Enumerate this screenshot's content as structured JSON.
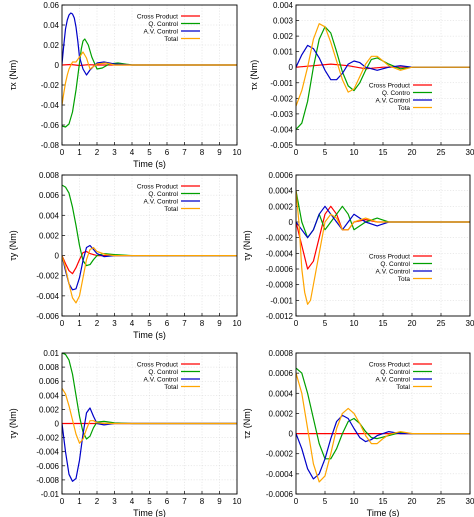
{
  "chart_data": [
    {
      "type": "line",
      "xlabel": "Time (s)",
      "ylabel": "τx (Nm)",
      "xlim": [
        0,
        10
      ],
      "ylim": [
        -0.08,
        0.06
      ],
      "xticks": [
        "0",
        "1",
        "2",
        "3",
        "4",
        "5",
        "6",
        "7",
        "8",
        "9",
        "10"
      ],
      "yticks": [
        "-0.08",
        "-0.06",
        "-0.04",
        "-0.02",
        "0",
        "0.02",
        "0.04",
        "0.06"
      ],
      "legend_position": "top-right",
      "series": [
        {
          "name": "Cross Product",
          "color": "#ff0000",
          "x": [
            0,
            0.5,
            1,
            1.5,
            2,
            3,
            10
          ],
          "y": [
            0,
            0.0005,
            -0.0005,
            0.0003,
            0,
            0,
            0
          ]
        },
        {
          "name": "Q. Control",
          "color": "#00a000",
          "x": [
            0,
            0.2,
            0.4,
            0.6,
            0.8,
            1.0,
            1.1,
            1.2,
            1.3,
            1.5,
            1.7,
            2.0,
            2.3,
            2.7,
            3.2,
            4,
            10
          ],
          "y": [
            -0.061,
            -0.062,
            -0.059,
            -0.047,
            -0.025,
            0.002,
            0.016,
            0.024,
            0.026,
            0.02,
            0.008,
            -0.004,
            -0.003,
            0.001,
            0.002,
            0,
            0
          ]
        },
        {
          "name": "A.V. Control",
          "color": "#0000c8",
          "x": [
            0,
            0.1,
            0.2,
            0.3,
            0.4,
            0.5,
            0.6,
            0.7,
            0.8,
            0.9,
            1.0,
            1.2,
            1.4,
            1.6,
            2.0,
            2.4,
            3,
            4,
            10
          ],
          "y": [
            0.001,
            0.02,
            0.036,
            0.045,
            0.05,
            0.052,
            0.051,
            0.047,
            0.038,
            0.024,
            0.008,
            -0.004,
            -0.01,
            -0.005,
            0.002,
            0.003,
            0.001,
            0,
            0
          ]
        },
        {
          "name": "Total",
          "color": "#ffa500",
          "x": [
            0,
            0.1,
            0.2,
            0.3,
            0.4,
            0.6,
            0.8,
            1.0,
            1.2,
            1.4,
            1.6,
            2.0,
            2.5,
            3,
            10
          ],
          "y": [
            -0.04,
            -0.028,
            -0.018,
            -0.01,
            -0.004,
            0.003,
            0.003,
            0.008,
            0.013,
            0.007,
            -0.004,
            0.001,
            0.002,
            0,
            0
          ]
        }
      ]
    },
    {
      "type": "line",
      "xlabel": "",
      "ylabel": "τx (Nm)",
      "xlim": [
        0,
        30
      ],
      "ylim": [
        -0.005,
        0.004
      ],
      "xticks": [
        "0",
        "5",
        "10",
        "15",
        "20",
        "25",
        "30"
      ],
      "yticks": [
        "-0.005",
        "-0.004",
        "-0.003",
        "-0.002",
        "-0.001",
        "0",
        "0.001",
        "0.002",
        "0.003",
        "0.004"
      ],
      "legend_position": "right",
      "series": [
        {
          "name": "Cross Product",
          "color": "#ff0000",
          "x": [
            0,
            3,
            6,
            9,
            12,
            15,
            18,
            30
          ],
          "y": [
            0,
            0.0001,
            0.0002,
            0.0001,
            -0.0001,
            0,
            0,
            0
          ]
        },
        {
          "name": "Q. Contro",
          "color": "#00a000",
          "x": [
            0,
            1,
            2,
            3,
            4,
            5,
            6,
            7,
            8,
            9,
            10,
            11,
            12,
            13,
            14,
            16,
            18,
            20,
            22,
            30
          ],
          "y": [
            -0.004,
            -0.0036,
            -0.0022,
            0,
            0.0018,
            0.0026,
            0.0022,
            0.001,
            -0.0003,
            -0.0012,
            -0.0015,
            -0.001,
            -0.0002,
            0.0005,
            0.0006,
            0.0002,
            -0.0001,
            0,
            0,
            0
          ]
        },
        {
          "name": "A.V. Control",
          "color": "#0000c8",
          "x": [
            0,
            1,
            2,
            3,
            4,
            5,
            6,
            7,
            8,
            9,
            10,
            11,
            12,
            14,
            16,
            18,
            20,
            30
          ],
          "y": [
            0,
            0.0008,
            0.0014,
            0.0012,
            0.0006,
            -0.0002,
            -0.0008,
            -0.0008,
            -0.0004,
            0.0002,
            0.0004,
            0.0003,
            0,
            -0.0002,
            0,
            0.0001,
            0,
            0
          ]
        },
        {
          "name": "Tota",
          "color": "#ffa500",
          "x": [
            0,
            1,
            2,
            3,
            4,
            5,
            6,
            7,
            8,
            9,
            10,
            11,
            12,
            13,
            14,
            15,
            16,
            18,
            20,
            22,
            30
          ],
          "y": [
            -0.0025,
            -0.0015,
            0,
            0.0018,
            0.0028,
            0.0026,
            0.0016,
            0.0004,
            -0.0008,
            -0.0016,
            -0.0014,
            -0.0006,
            0.0002,
            0.0007,
            0.0007,
            0.0004,
            0.0001,
            -0.0002,
            0,
            0,
            0
          ]
        }
      ]
    },
    {
      "type": "line",
      "xlabel": "Time (s)",
      "ylabel": "τy (Nm)",
      "xlim": [
        0,
        10
      ],
      "ylim": [
        -0.006,
        0.008
      ],
      "xticks": [
        "0",
        "1",
        "2",
        "3",
        "4",
        "5",
        "6",
        "7",
        "8",
        "9",
        "10"
      ],
      "yticks": [
        "-0.006",
        "-0.004",
        "-0.002",
        "0",
        "0.002",
        "0.004",
        "0.006",
        "0.008"
      ],
      "legend_position": "top-right",
      "series": [
        {
          "name": "Cross Product",
          "color": "#ff0000",
          "x": [
            0,
            0.2,
            0.4,
            0.6,
            0.8,
            1.0,
            1.2,
            1.4,
            1.6,
            2.0,
            2.5,
            10
          ],
          "y": [
            0,
            -0.0008,
            -0.0015,
            -0.0018,
            -0.0012,
            -0.0004,
            0.0003,
            0.0004,
            0.0002,
            0,
            0,
            0
          ]
        },
        {
          "name": "Q. Control",
          "color": "#00a000",
          "x": [
            0,
            0.2,
            0.4,
            0.6,
            0.8,
            1.0,
            1.2,
            1.4,
            1.6,
            1.8,
            2.0,
            2.4,
            3,
            4,
            10
          ],
          "y": [
            0.007,
            0.0068,
            0.0062,
            0.0048,
            0.003,
            0.001,
            -0.0005,
            -0.001,
            -0.0009,
            -0.0004,
            0,
            0.0002,
            0.0001,
            0,
            0
          ]
        },
        {
          "name": "A.V. Control",
          "color": "#0000c8",
          "x": [
            0,
            0.2,
            0.4,
            0.6,
            0.8,
            1.0,
            1.2,
            1.4,
            1.6,
            1.8,
            2.0,
            2.4,
            3,
            4,
            10
          ],
          "y": [
            0,
            -0.0015,
            -0.0028,
            -0.0034,
            -0.0033,
            -0.0022,
            -0.0005,
            0.0008,
            0.001,
            0.0006,
            0.0002,
            -0.0001,
            0,
            0,
            0
          ]
        },
        {
          "name": "Total",
          "color": "#ffa500",
          "x": [
            0,
            0.2,
            0.4,
            0.6,
            0.8,
            1.0,
            1.2,
            1.4,
            1.6,
            1.8,
            2.0,
            2.5,
            3,
            10
          ],
          "y": [
            0,
            -0.0012,
            -0.0028,
            -0.0042,
            -0.0047,
            -0.004,
            -0.0022,
            -0.0004,
            0.0006,
            0.0008,
            0.0004,
            0.0001,
            0,
            0
          ]
        }
      ]
    },
    {
      "type": "line",
      "xlabel": "",
      "ylabel": "τy (Nm)",
      "xlim": [
        0,
        30
      ],
      "ylim": [
        -0.0012,
        0.0006
      ],
      "xticks": [
        "0",
        "5",
        "10",
        "15",
        "20",
        "25",
        "30"
      ],
      "yticks": [
        "-0.0012",
        "-0.001",
        "-0.0008",
        "-0.0006",
        "-0.0004",
        "-0.0002",
        "0",
        "0.0002",
        "0.0004",
        "0.0006"
      ],
      "legend_position": "right",
      "series": [
        {
          "name": "Cross Product",
          "color": "#ff0000",
          "x": [
            0,
            1,
            2,
            3,
            4,
            5,
            6,
            7,
            8,
            9,
            10,
            12,
            14,
            16,
            30
          ],
          "y": [
            0,
            -0.0003,
            -0.0006,
            -0.0005,
            -0.0002,
            0.0001,
            0.0002,
            0.0001,
            -0.0001,
            -0.0001,
            0,
            3e-05,
            0,
            0,
            0
          ]
        },
        {
          "name": "Q. Control",
          "color": "#00a000",
          "x": [
            0,
            0.5,
            1,
            2,
            3,
            4,
            5,
            6,
            7,
            8,
            9,
            10,
            12,
            14,
            16,
            30
          ],
          "y": [
            0.0004,
            0.0002,
            0,
            -0.0002,
            -0.0001,
            0.0001,
            -0.0001,
            0,
            0.0001,
            0.0002,
            0.0001,
            -0.0001,
            0,
            5e-05,
            0,
            0
          ]
        },
        {
          "name": "A.V. Control",
          "color": "#0000c8",
          "x": [
            0,
            1,
            2,
            3,
            4,
            5,
            6,
            7,
            8,
            9,
            10,
            12,
            14,
            16,
            30
          ],
          "y": [
            0,
            -0.0001,
            -0.0002,
            -0.0001,
            0.0001,
            0.0002,
            0.0001,
            0,
            -0.0001,
            0,
            0.0001,
            0,
            -5e-05,
            0,
            0
          ]
        },
        {
          "name": "Tota",
          "color": "#ffa500",
          "x": [
            0,
            0.5,
            1,
            1.5,
            2,
            2.5,
            3,
            4,
            5,
            6,
            7,
            8,
            9,
            10,
            12,
            14,
            16,
            30
          ],
          "y": [
            0.0004,
            0,
            -0.0006,
            -0.0009,
            -0.00105,
            -0.001,
            -0.0008,
            -0.0004,
            0,
            0.0001,
            5e-05,
            -0.0001,
            -0.0001,
            0,
            5e-05,
            0,
            0,
            0
          ]
        }
      ]
    },
    {
      "type": "line",
      "xlabel": "Time (s)",
      "ylabel": "τy (Nm)",
      "xlim": [
        0,
        10
      ],
      "ylim": [
        -0.01,
        0.01
      ],
      "xticks": [
        "0",
        "1",
        "2",
        "3",
        "4",
        "5",
        "6",
        "7",
        "8",
        "9",
        "10"
      ],
      "yticks": [
        "-0.01",
        "-0.008",
        "-0.006",
        "-0.004",
        "-0.002",
        "0",
        "0.002",
        "0.004",
        "0.006",
        "0.008",
        "0.01"
      ],
      "legend_position": "top-right",
      "series": [
        {
          "name": "Cross Product",
          "color": "#ff0000",
          "x": [
            0,
            10
          ],
          "y": [
            0,
            0
          ]
        },
        {
          "name": "Q. Control",
          "color": "#00a000",
          "x": [
            0,
            0.2,
            0.4,
            0.6,
            0.8,
            1.0,
            1.2,
            1.4,
            1.6,
            1.8,
            2.0,
            2.4,
            3,
            4,
            10
          ],
          "y": [
            0.01,
            0.0098,
            0.009,
            0.007,
            0.004,
            0.001,
            -0.0012,
            -0.0022,
            -0.0018,
            -0.0006,
            0.0002,
            0.0003,
            0.0001,
            0,
            0
          ]
        },
        {
          "name": "A.V. Control",
          "color": "#0000c8",
          "x": [
            0,
            0.2,
            0.4,
            0.6,
            0.8,
            1.0,
            1.2,
            1.4,
            1.6,
            1.8,
            2.0,
            2.4,
            3,
            4,
            10
          ],
          "y": [
            0,
            -0.004,
            -0.0072,
            -0.0082,
            -0.0078,
            -0.0052,
            -0.0015,
            0.0015,
            0.0022,
            0.001,
            0,
            -0.0002,
            0,
            0,
            0
          ]
        },
        {
          "name": "Total",
          "color": "#ffa500",
          "x": [
            0,
            0.2,
            0.4,
            0.6,
            0.8,
            1.0,
            1.2,
            1.4,
            1.6,
            1.8,
            2.0,
            2.5,
            3,
            10
          ],
          "y": [
            0.005,
            0.0042,
            0.0025,
            0.0005,
            -0.0015,
            -0.0028,
            -0.0022,
            -0.0008,
            0.0004,
            0.0004,
            0.0001,
            0,
            0,
            0
          ]
        }
      ]
    },
    {
      "type": "line",
      "xlabel": "Time (s)",
      "ylabel": "τz (Nm)",
      "xlim": [
        0,
        30
      ],
      "ylim": [
        -0.0006,
        0.0008
      ],
      "xticks": [
        "0",
        "5",
        "10",
        "15",
        "20",
        "25",
        "30"
      ],
      "yticks": [
        "-0.0006",
        "-0.0004",
        "-0.0002",
        "0",
        "0.0002",
        "0.0004",
        "0.0006",
        "0.0008"
      ],
      "legend_position": "top-right",
      "series": [
        {
          "name": "Cross Product",
          "color": "#ff0000",
          "x": [
            0,
            30
          ],
          "y": [
            0,
            0
          ]
        },
        {
          "name": "Q. Control",
          "color": "#00a000",
          "x": [
            0,
            1,
            2,
            3,
            4,
            5,
            6,
            7,
            8,
            9,
            10,
            11,
            12,
            13,
            14,
            16,
            18,
            20,
            22,
            30
          ],
          "y": [
            0.00065,
            0.0006,
            0.0004,
            0.00015,
            -0.0001,
            -0.00025,
            -0.00025,
            -0.00015,
            0,
            0.00012,
            0.00015,
            0.0001,
            2e-05,
            -4e-05,
            -5e-05,
            -2e-05,
            1e-05,
            0,
            0,
            0
          ]
        },
        {
          "name": "A.V. Control",
          "color": "#0000c8",
          "x": [
            0,
            1,
            2,
            3,
            4,
            5,
            6,
            7,
            8,
            9,
            10,
            11,
            12,
            13,
            14,
            16,
            18,
            20,
            30
          ],
          "y": [
            0,
            -0.00015,
            -0.00035,
            -0.00045,
            -0.0004,
            -0.00025,
            -5e-05,
            0.00012,
            0.00018,
            0.00015,
            5e-05,
            -4e-05,
            -8e-05,
            -6e-05,
            -2e-05,
            2e-05,
            0,
            0,
            0
          ]
        },
        {
          "name": "Total",
          "color": "#ffa500",
          "x": [
            0,
            1,
            2,
            3,
            4,
            5,
            6,
            7,
            8,
            9,
            10,
            11,
            12,
            13,
            14,
            15,
            16,
            18,
            20,
            22,
            30
          ],
          "y": [
            0.0006,
            0.0004,
            5e-05,
            -0.0003,
            -0.00048,
            -0.00042,
            -0.0002,
            5e-05,
            0.0002,
            0.00025,
            0.0002,
            0.0001,
            -2e-05,
            -0.0001,
            -0.0001,
            -5e-05,
            -1e-05,
            2e-05,
            0,
            0,
            0
          ]
        }
      ]
    }
  ]
}
